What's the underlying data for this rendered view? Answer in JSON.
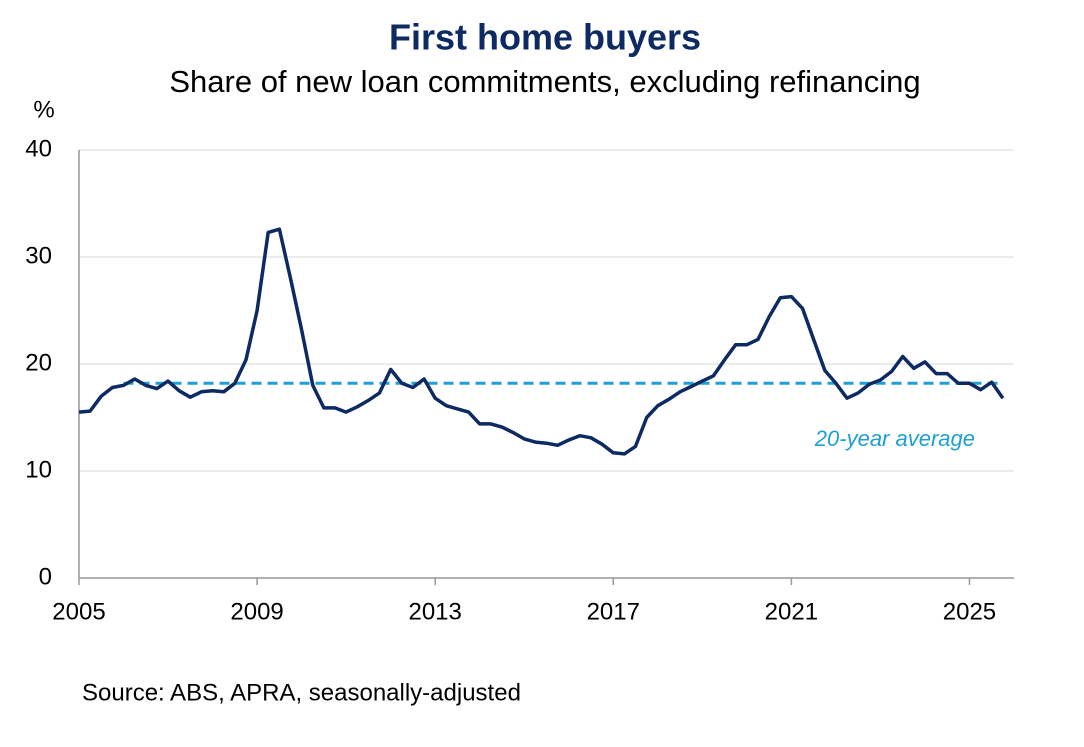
{
  "chart_data": {
    "type": "line",
    "title": "First home buyers",
    "subtitle": "Share of new loan commitments, excluding refinancing",
    "ylabel": "%",
    "source": "Source: ABS, APRA, seasonally-adjusted",
    "xlim": [
      2005,
      2026
    ],
    "xticks": [
      2005,
      2009,
      2013,
      2017,
      2021,
      2025
    ],
    "ylim": [
      0,
      40
    ],
    "yticks": [
      0,
      10,
      20,
      30,
      40
    ],
    "grid": true,
    "series": [
      {
        "name": "First home buyers share",
        "color": "#0d2a63",
        "dashed": false,
        "x": [
          2005,
          2005.25,
          2005.5,
          2005.75,
          2006,
          2006.25,
          2006.5,
          2006.75,
          2007,
          2007.25,
          2007.5,
          2007.75,
          2008,
          2008.25,
          2008.5,
          2008.75,
          2009,
          2009.25,
          2009.5,
          2009.75,
          2010,
          2010.25,
          2010.5,
          2010.75,
          2011,
          2011.25,
          2011.5,
          2011.75,
          2012,
          2012.25,
          2012.5,
          2012.75,
          2013,
          2013.25,
          2013.5,
          2013.75,
          2014,
          2014.25,
          2014.5,
          2014.75,
          2015,
          2015.25,
          2015.5,
          2015.75,
          2016,
          2016.25,
          2016.5,
          2016.75,
          2017,
          2017.25,
          2017.5,
          2017.75,
          2018,
          2018.25,
          2018.5,
          2018.75,
          2019,
          2019.25,
          2019.5,
          2019.75,
          2020,
          2020.25,
          2020.5,
          2020.75,
          2021,
          2021.25,
          2021.5,
          2021.75,
          2022,
          2022.25,
          2022.5,
          2022.75,
          2023,
          2023.25,
          2023.5,
          2023.75,
          2024,
          2024.25,
          2024.5,
          2024.75,
          2025,
          2025.25,
          2025.5,
          2025.75
        ],
        "values": [
          15.5,
          15.6,
          17.0,
          17.8,
          18.0,
          18.6,
          18.0,
          17.7,
          18.4,
          17.5,
          16.9,
          17.4,
          17.5,
          17.4,
          18.2,
          20.4,
          25.0,
          32.3,
          32.6,
          28.0,
          23.2,
          18.0,
          15.9,
          15.9,
          15.5,
          16.0,
          16.6,
          17.3,
          19.5,
          18.2,
          17.8,
          18.6,
          16.8,
          16.1,
          15.8,
          15.5,
          14.4,
          14.4,
          14.1,
          13.6,
          13.0,
          12.7,
          12.6,
          12.4,
          12.9,
          13.3,
          13.1,
          12.5,
          11.7,
          11.6,
          12.3,
          15.0,
          16.1,
          16.7,
          17.4,
          17.9,
          18.4,
          18.9,
          20.4,
          21.8,
          21.8,
          22.3,
          24.4,
          26.2,
          26.3,
          25.2,
          22.3,
          19.4,
          18.2,
          16.8,
          17.3,
          18.1,
          18.5,
          19.3,
          20.7,
          19.6,
          20.2,
          19.1,
          19.1,
          18.2,
          18.2,
          17.6,
          18.3,
          16.8
        ]
      },
      {
        "name": "20-year average",
        "color": "#1fa0d4",
        "dashed": true,
        "x": [
          2006,
          2025.75
        ],
        "values": [
          18.2,
          18.2
        ]
      }
    ]
  }
}
